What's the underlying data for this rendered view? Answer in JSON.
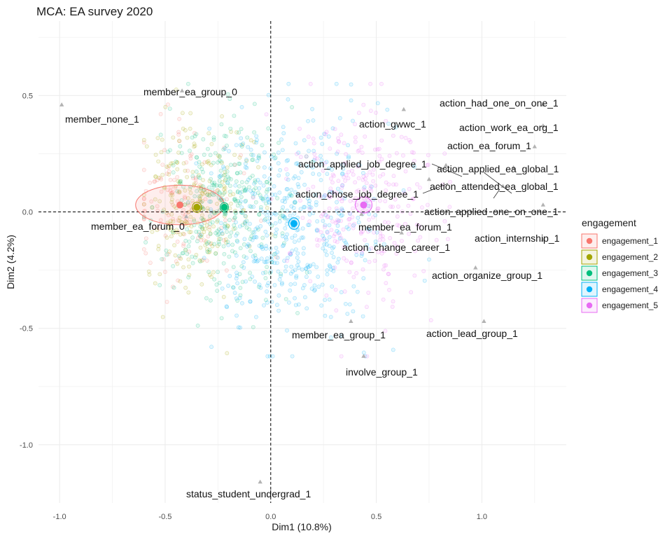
{
  "chart_data": {
    "type": "scatter",
    "title": "MCA: EA survey 2020",
    "xlabel": "Dim1 (10.8%)",
    "ylabel": "Dim2 (4.2%)",
    "xlim": [
      -1.1,
      1.4
    ],
    "ylim": [
      -1.25,
      0.82
    ],
    "xticks": [
      -1.0,
      -0.5,
      0.0,
      0.5,
      1.0
    ],
    "xtick_labels": [
      "-1.0",
      "-0.5",
      "0.0",
      "0.5",
      "1.0"
    ],
    "yticks": [
      -1.0,
      -0.5,
      0.0,
      0.5
    ],
    "ytick_labels": [
      "-1.0",
      "-0.5",
      "0.0",
      "0.5"
    ],
    "grid": true,
    "reference_lines": {
      "x": 0,
      "y": 0,
      "style": "dashed"
    },
    "legend": {
      "title": "engagement",
      "position": "right",
      "entries": [
        "engagement_1",
        "engagement_2",
        "engagement_3",
        "engagement_4",
        "engagement_5"
      ]
    },
    "groups": [
      {
        "name": "engagement_1",
        "color": "#F8766D",
        "centroid": [
          -0.43,
          0.03
        ],
        "ellipse_radii": [
          0.21,
          0.085
        ]
      },
      {
        "name": "engagement_2",
        "color": "#A3A500",
        "centroid": [
          -0.35,
          0.02
        ],
        "ellipse_radii": [
          0.022,
          0.022
        ]
      },
      {
        "name": "engagement_3",
        "color": "#00BF7D",
        "centroid": [
          -0.22,
          0.02
        ],
        "ellipse_radii": [
          0.02,
          0.02
        ]
      },
      {
        "name": "engagement_4",
        "color": "#00B0F6",
        "centroid": [
          0.11,
          -0.05
        ],
        "ellipse_radii": [
          0.025,
          0.025
        ]
      },
      {
        "name": "engagement_5",
        "color": "#E76BF3",
        "centroid": [
          0.44,
          0.03
        ],
        "ellipse_radii": [
          0.04,
          0.035
        ]
      }
    ],
    "variables": [
      {
        "label": "member_none_1",
        "x": -0.99,
        "y": 0.46
      },
      {
        "label": "member_ea_group_0",
        "x": -0.42,
        "y": 0.52
      },
      {
        "label": "member_ea_forum_0",
        "x": -0.4,
        "y": -0.02
      },
      {
        "label": "action_had_one_on_one_1",
        "x": 1.29,
        "y": 0.46
      },
      {
        "label": "action_work_ea_org_1",
        "x": 1.29,
        "y": 0.37
      },
      {
        "label": "action_ea_forum_1",
        "x": 1.25,
        "y": 0.28
      },
      {
        "label": "action_gwwc_1",
        "x": 0.63,
        "y": 0.44
      },
      {
        "label": "action_applied_job_degree_1",
        "x": 0.83,
        "y": 0.2
      },
      {
        "label": "action_applied_ea_global_1",
        "x": 1.15,
        "y": 0.19
      },
      {
        "label": "action_attended_ea_global_1",
        "x": 1.1,
        "y": 0.11
      },
      {
        "label": "action_chose_job_degree_1",
        "x": 0.75,
        "y": 0.14
      },
      {
        "label": "action_applied_one_on_one_1",
        "x": 1.29,
        "y": 0.03
      },
      {
        "label": "member_ea_forum_1",
        "x": 0.43,
        "y": -0.01
      },
      {
        "label": "action_change_career_1",
        "x": 0.62,
        "y": -0.09
      },
      {
        "label": "action_internship_1",
        "x": 1.29,
        "y": -0.12
      },
      {
        "label": "action_organize_group_1",
        "x": 0.97,
        "y": -0.24
      },
      {
        "label": "action_lead_group_1",
        "x": 1.01,
        "y": -0.47
      },
      {
        "label": "member_ea_group_1",
        "x": 0.38,
        "y": -0.47
      },
      {
        "label": "involve_group_1",
        "x": 0.44,
        "y": -0.62
      },
      {
        "label": "status_student_undergrad_1",
        "x": -0.05,
        "y": -1.16
      }
    ]
  }
}
